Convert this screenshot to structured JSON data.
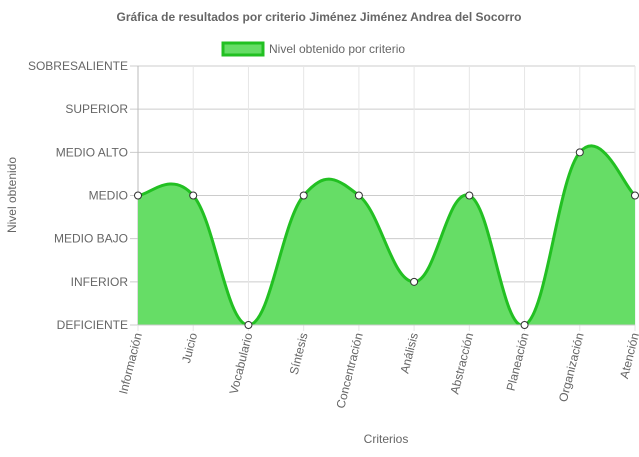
{
  "chart_data": {
    "type": "area",
    "title": "Gráfica de resultados por criterio Jiménez Jiménez Andrea del Socorro",
    "xlabel": "Criterios",
    "ylabel": "Nivel obtenido",
    "categories": [
      "Información",
      "Juicio",
      "Vocabulario",
      "Síntesis",
      "Concentración",
      "Análisis",
      "Abstracción",
      "Planeación",
      "Organización",
      "Atención"
    ],
    "y_levels": [
      "DEFICIENTE",
      "INFERIOR",
      "MEDIO BAJO",
      "MEDIO",
      "MEDIO ALTO",
      "SUPERIOR",
      "SOBRESALIENTE"
    ],
    "ylim": [
      0,
      6
    ],
    "grid": true,
    "legend_position": "top",
    "series": [
      {
        "name": "Nivel obtenido por criterio",
        "values": [
          3,
          3,
          0,
          3,
          3,
          1,
          3,
          0,
          4,
          3
        ],
        "value_labels": [
          "MEDIO",
          "MEDIO",
          "DEFICIENTE",
          "MEDIO",
          "MEDIO",
          "INFERIOR",
          "MEDIO",
          "DEFICIENTE",
          "MEDIO ALTO",
          "MEDIO"
        ],
        "fill_color": "#66dd66",
        "line_color": "#22c022",
        "point_color": "#ffffff"
      }
    ]
  }
}
